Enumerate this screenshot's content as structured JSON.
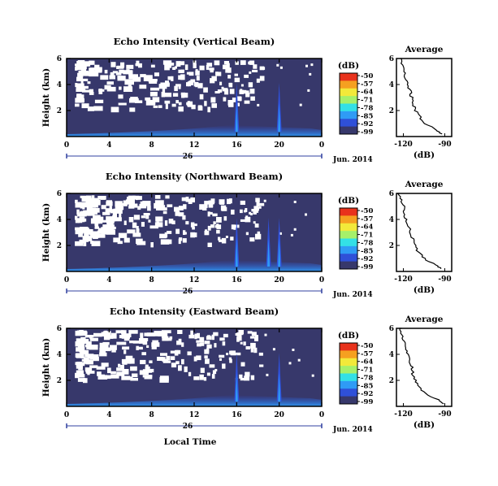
{
  "chart_data": {
    "type": "heatmap",
    "colorbar": {
      "unit": "(dB)",
      "ticks": [
        "-50",
        "-57",
        "-64",
        "-71",
        "-78",
        "-85",
        "-92",
        "-99"
      ],
      "values": [
        -50,
        -57,
        -64,
        -71,
        -78,
        -85,
        -92,
        -99
      ],
      "colors": [
        "#e8321c",
        "#f5a020",
        "#f2e93a",
        "#a6f06a",
        "#33e0e6",
        "#2f9bf5",
        "#2f50d8",
        "#37386b"
      ]
    },
    "panels": [
      {
        "title": "Echo Intensity (Vertical Beam)",
        "ylabel": "Height (km)",
        "yticks": [
          "6",
          "4",
          "2"
        ],
        "ylim": [
          0,
          6
        ],
        "xticks": [
          "0",
          "4",
          "8",
          "12",
          "16",
          "20",
          "0"
        ],
        "date_day": "26",
        "date_label": "Jun. 2014",
        "xlabel": "",
        "spikes_hours": [
          16,
          20
        ],
        "profile": {
          "title": "Average",
          "xlabel": "(dB)",
          "xticks": [
            "-120",
            "-90"
          ],
          "yticks": [
            "6",
            "4",
            "2"
          ],
          "xlim": [
            -125,
            -85
          ],
          "heights": [
            0.2,
            0.5,
            1.0,
            1.5,
            2.0,
            2.5,
            3.0,
            3.5,
            4.0,
            4.5,
            5.0,
            5.5,
            6.0
          ],
          "values": [
            -92,
            -96,
            -104,
            -108,
            -111,
            -113,
            -114,
            -115,
            -117,
            -118,
            -120,
            -121,
            -122
          ]
        }
      },
      {
        "title": "Echo Intensity (Northward Beam)",
        "ylabel": "Height (km)",
        "yticks": [
          "6",
          "4",
          "2"
        ],
        "ylim": [
          0,
          6
        ],
        "xticks": [
          "0",
          "4",
          "8",
          "12",
          "16",
          "20",
          "0"
        ],
        "date_day": "26",
        "date_label": "Jun. 2014",
        "xlabel": "",
        "spikes_hours": [
          16,
          19,
          20
        ],
        "profile": {
          "title": "Average",
          "xlabel": "(dB)",
          "xticks": [
            "-120",
            "-90"
          ],
          "yticks": [
            "6",
            "4",
            "2"
          ],
          "xlim": [
            -125,
            -85
          ],
          "heights": [
            0.2,
            0.5,
            1.0,
            1.5,
            2.0,
            2.5,
            3.0,
            3.5,
            4.0,
            4.5,
            5.0,
            5.5,
            6.0
          ],
          "values": [
            -93,
            -97,
            -105,
            -109,
            -112,
            -113,
            -115,
            -116,
            -118,
            -119,
            -120,
            -121,
            -123
          ]
        }
      },
      {
        "title": "Echo Intensity (Eastward Beam)",
        "ylabel": "Height (km)",
        "yticks": [
          "6",
          "4",
          "2"
        ],
        "ylim": [
          0,
          6
        ],
        "xticks": [
          "0",
          "4",
          "8",
          "12",
          "16",
          "20",
          "0"
        ],
        "date_day": "26",
        "date_label": "Jun. 2014",
        "xlabel": "Local Time",
        "spikes_hours": [
          16,
          20
        ],
        "profile": {
          "title": "Average",
          "xlabel": "(dB)",
          "xticks": [
            "-120",
            "-90"
          ],
          "yticks": [
            "6",
            "4",
            "2"
          ],
          "xlim": [
            -125,
            -85
          ],
          "heights": [
            0.2,
            0.5,
            1.0,
            1.5,
            2.0,
            2.5,
            3.0,
            3.5,
            4.0,
            4.5,
            5.0,
            5.5,
            6.0
          ],
          "values": [
            -90,
            -95,
            -104,
            -109,
            -111,
            -113,
            -114,
            -116,
            -117,
            -118,
            -120,
            -121,
            -122
          ]
        }
      }
    ]
  }
}
